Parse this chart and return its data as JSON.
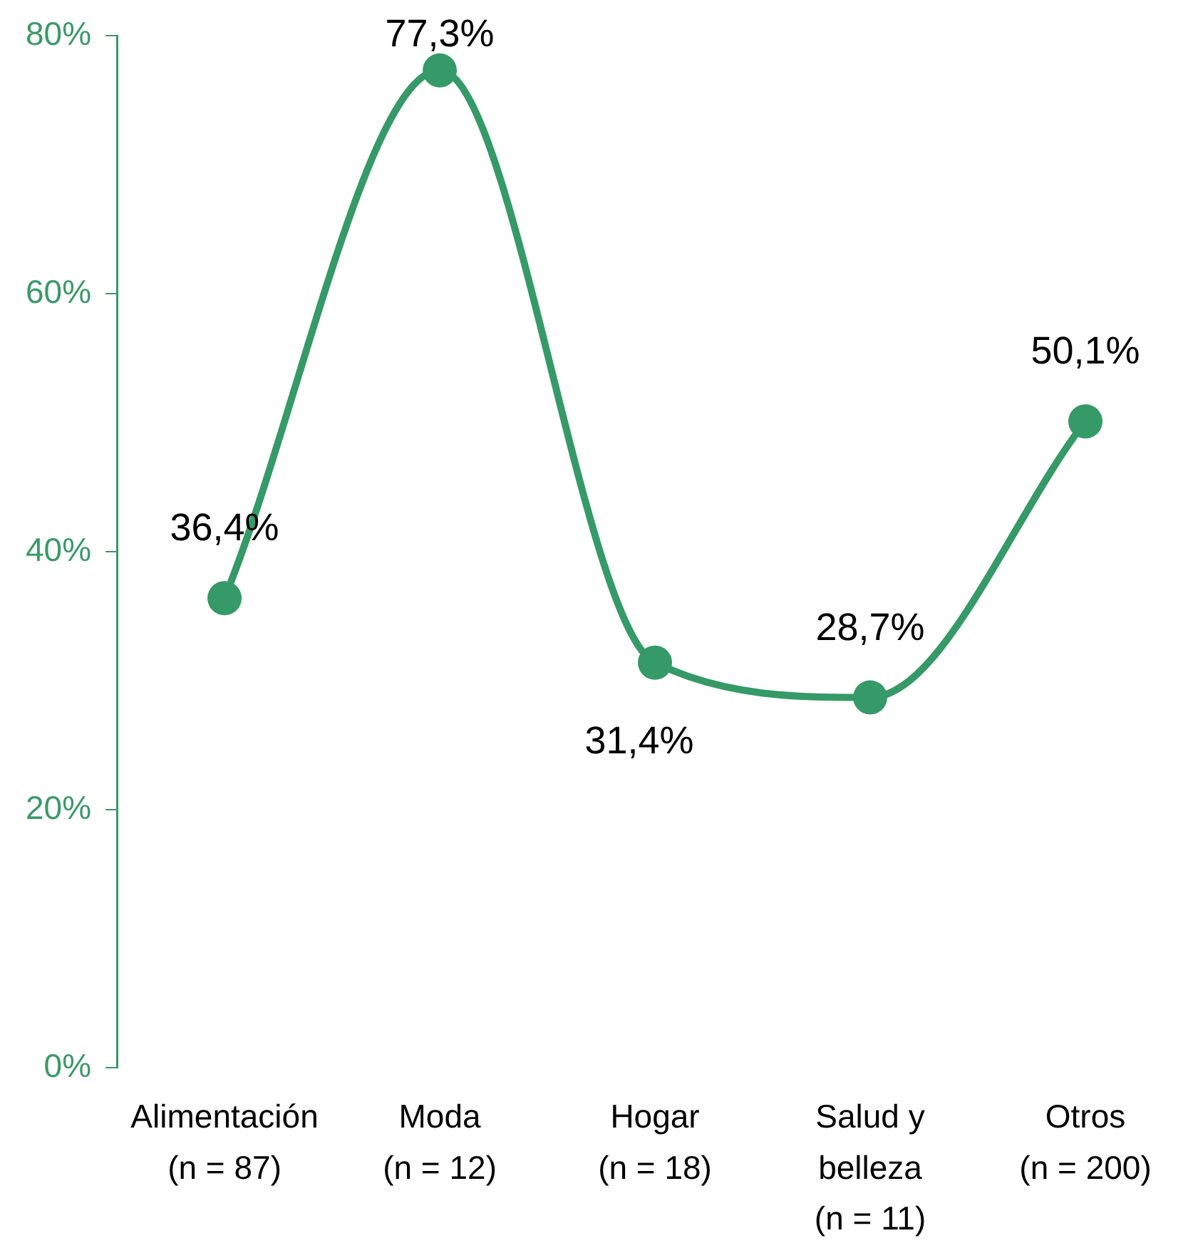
{
  "chart_data": {
    "type": "line",
    "categories": [
      "Alimentación\n(n = 87)",
      "Moda\n(n = 12)",
      "Hogar\n(n = 18)",
      "Salud y\nbelleza\n(n = 11)",
      "Otros\n(n = 200)"
    ],
    "values": [
      36.4,
      77.3,
      31.4,
      28.7,
      50.1
    ],
    "value_labels": [
      "36,4%",
      "77,3%",
      "31,4%",
      "28,7%",
      "50,1%"
    ],
    "color": "#359a67",
    "ylim": [
      0,
      80
    ],
    "yticks": [
      {
        "value": 0,
        "label": "0%"
      },
      {
        "value": 20,
        "label": "20%"
      },
      {
        "value": 40,
        "label": "40%"
      },
      {
        "value": 60,
        "label": "60%"
      },
      {
        "value": 80,
        "label": "80%"
      }
    ],
    "legend": false,
    "marker": "circle",
    "line_style": "solid"
  }
}
